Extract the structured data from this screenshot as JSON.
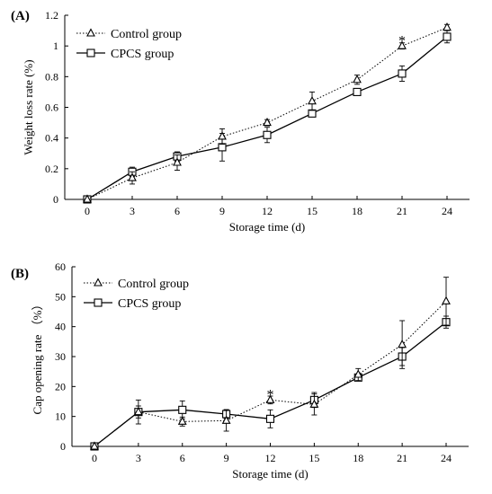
{
  "chart_data": [
    {
      "panel_label": "(A)",
      "type": "line",
      "x": [
        0,
        3,
        6,
        9,
        12,
        15,
        18,
        21,
        24
      ],
      "xticks": [
        "0",
        "3",
        "6",
        "9",
        "12",
        "15",
        "18",
        "21",
        "24"
      ],
      "yticks": [
        "0",
        "0.2",
        "0.4",
        "0.6",
        "0.8",
        "1",
        "1.2"
      ],
      "xlabel": "Storage time (d)",
      "ylabel": "Weight loss rate (%)",
      "xlim": [
        0,
        24
      ],
      "ylim": [
        0,
        1.2
      ],
      "grid": false,
      "legend_position": "top-left",
      "series": [
        {
          "name": "Control group",
          "marker": "triangle",
          "line": "dotted",
          "values": [
            0,
            0.14,
            0.24,
            0.41,
            0.5,
            0.64,
            0.78,
            1.0,
            1.12
          ],
          "errors": [
            0,
            0.04,
            0.05,
            0.05,
            0.02,
            0.06,
            0.03,
            0.02,
            0.02
          ]
        },
        {
          "name": "CPCS group",
          "marker": "square",
          "line": "solid",
          "values": [
            0,
            0.18,
            0.28,
            0.34,
            0.42,
            0.56,
            0.7,
            0.82,
            1.06
          ],
          "errors": [
            0,
            0.03,
            0.03,
            0.09,
            0.05,
            0.01,
            0.01,
            0.05,
            0.04
          ]
        }
      ],
      "annotations": [
        {
          "text": "*",
          "x": 21,
          "y": 1.04
        }
      ]
    },
    {
      "panel_label": "(B)",
      "type": "line",
      "x": [
        0,
        3,
        6,
        9,
        12,
        15,
        18,
        21,
        24
      ],
      "xticks": [
        "0",
        "3",
        "6",
        "9",
        "12",
        "15",
        "18",
        "21",
        "24"
      ],
      "yticks": [
        "0",
        "10",
        "20",
        "30",
        "40",
        "50",
        "60"
      ],
      "xlabel": "Storage time (d)",
      "ylabel": "Cap opening rate （%）",
      "xlim": [
        0,
        24
      ],
      "ylim": [
        0,
        60
      ],
      "grid": false,
      "legend_position": "top-left",
      "series": [
        {
          "name": "Control group",
          "marker": "triangle",
          "line": "dotted",
          "values": [
            0,
            11.5,
            8.3,
            8.6,
            15.5,
            14.0,
            24.0,
            34.0,
            48.5
          ],
          "errors": [
            0,
            4.0,
            1.5,
            3.5,
            1.3,
            3.5,
            2.0,
            8.0,
            8.0
          ]
        },
        {
          "name": "CPCS group",
          "marker": "square",
          "line": "solid",
          "values": [
            0,
            11.5,
            12.2,
            10.8,
            9.2,
            15.5,
            23.0,
            30.0,
            41.5
          ],
          "errors": [
            0,
            2.0,
            3.0,
            1.5,
            3.0,
            2.5,
            1.0,
            3.0,
            2.0
          ]
        }
      ],
      "annotations": [
        {
          "text": "*",
          "x": 12,
          "y": 17.5
        }
      ]
    }
  ]
}
